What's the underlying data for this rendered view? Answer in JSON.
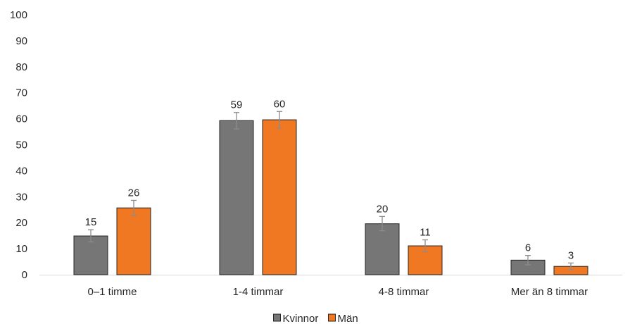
{
  "chart_data": {
    "type": "bar",
    "title": "",
    "xlabel": "",
    "ylabel": "",
    "ylim": [
      0,
      100
    ],
    "yticks": [
      0,
      10,
      20,
      30,
      40,
      50,
      60,
      70,
      80,
      90,
      100
    ],
    "grid": false,
    "legend_position": "bottom",
    "categories": [
      "0–1 timme",
      "1-4 timmar",
      "4-8 timmar",
      "Mer än 8 timmar"
    ],
    "series": [
      {
        "name": "Kvinnor",
        "color": "#767676",
        "values": [
          14.9,
          59.3,
          19.6,
          5.6
        ],
        "labels": [
          "15",
          "59",
          "20",
          "6"
        ],
        "error_low": [
          12.6,
          56.1,
          16.9,
          3.8
        ],
        "error_high": [
          17.3,
          62.4,
          22.4,
          7.4
        ]
      },
      {
        "name": "Män",
        "color": "#F07823",
        "values": [
          25.7,
          59.6,
          11.1,
          3.2
        ],
        "labels": [
          "26",
          "60",
          "11",
          "3"
        ],
        "error_low": [
          22.8,
          56.4,
          8.8,
          2.0
        ],
        "error_high": [
          28.6,
          62.8,
          13.4,
          4.5
        ]
      }
    ]
  }
}
